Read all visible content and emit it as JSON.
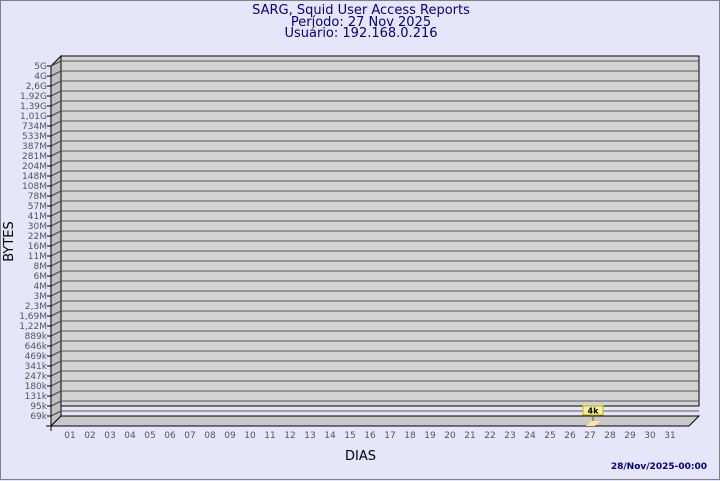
{
  "chart_data": {
    "type": "bar",
    "title": "SARG, Squid User Access Reports",
    "subtitle_period": "Período: 27 Nov 2025",
    "subtitle_user": "Usuário: 192.168.0.216",
    "xlabel": "DIAS",
    "ylabel": "BYTES",
    "y_scale": "log",
    "grid": true,
    "categories": [
      "01",
      "02",
      "03",
      "04",
      "05",
      "06",
      "07",
      "08",
      "09",
      "10",
      "11",
      "12",
      "13",
      "14",
      "15",
      "16",
      "17",
      "18",
      "19",
      "20",
      "21",
      "22",
      "23",
      "24",
      "25",
      "26",
      "27",
      "28",
      "29",
      "30",
      "31"
    ],
    "y_tick_labels": [
      "5G",
      "4G",
      "2,6G",
      "1,92G",
      "1,39G",
      "1,01G",
      "734M",
      "533M",
      "387M",
      "281M",
      "204M",
      "148M",
      "108M",
      "78M",
      "57M",
      "41M",
      "30M",
      "22M",
      "16M",
      "11M",
      "8M",
      "6M",
      "4M",
      "3M",
      "2,3M",
      "1,69M",
      "1,22M",
      "889k",
      "646k",
      "469k",
      "341k",
      "247k",
      "180k",
      "131k",
      "95k",
      "69k"
    ],
    "bars": [
      {
        "category": "27",
        "value": 4000,
        "label": "4k"
      }
    ],
    "colors": {
      "background": "#e6e6fa",
      "plot": "#d3d3d3",
      "bar": "#ffe699",
      "label_box": "#f5f0a0",
      "text": "#000080"
    }
  },
  "footer": {
    "timestamp": "28/Nov/2025-00:00"
  }
}
